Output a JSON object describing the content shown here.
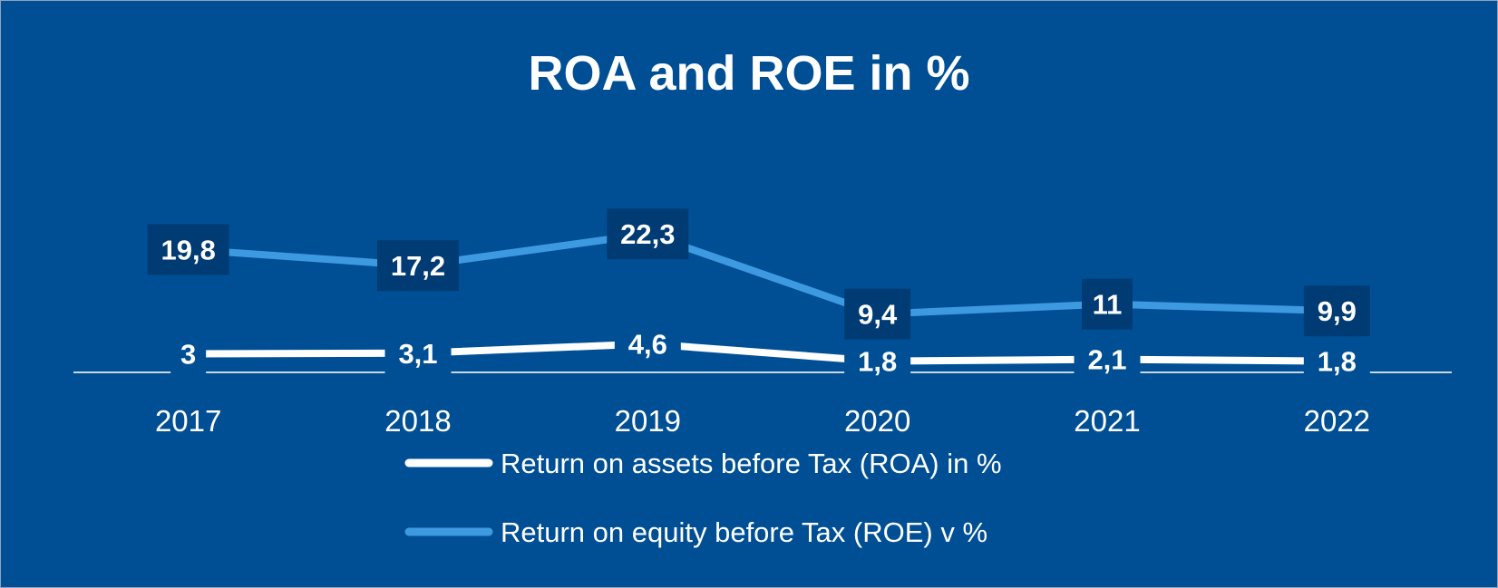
{
  "chart_data": {
    "type": "line",
    "title": "ROA and ROE in %",
    "categories": [
      "2017",
      "2018",
      "2019",
      "2020",
      "2021",
      "2022"
    ],
    "series": [
      {
        "name": "Return on assets before Tax (ROA) in %",
        "values": [
          3,
          3.1,
          4.6,
          1.8,
          2.1,
          1.8
        ],
        "labels": [
          "3",
          "3,1",
          "4,6",
          "1,8",
          "2,1",
          "1,8"
        ],
        "color": "#ffffff",
        "label_box_color": "#004f95"
      },
      {
        "name": "Return on equity before Tax (ROE) v %",
        "values": [
          19.8,
          17.2,
          22.3,
          9.4,
          11,
          9.9
        ],
        "labels": [
          "19,8",
          "17,2",
          "22,3",
          "9,4",
          "11",
          "9,9"
        ],
        "color": "#3e9ae0",
        "label_box_color": "#003b73"
      }
    ],
    "legend_position": "bottom",
    "grid": false,
    "background_color": "#004f95"
  }
}
